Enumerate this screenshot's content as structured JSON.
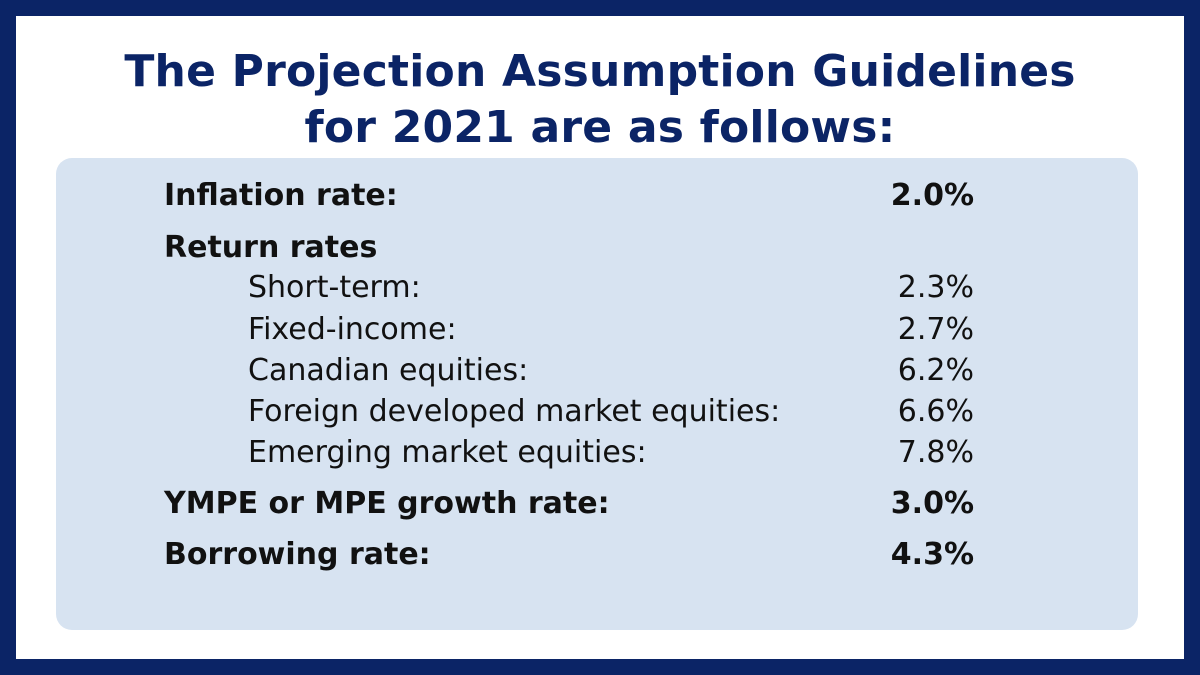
{
  "title": {
    "line1": "The Projection Assumption Guidelines",
    "line2": "for 2021 are as follows:"
  },
  "rows": {
    "inflation": {
      "label": "Inflation rate:",
      "value": "2.0%"
    },
    "return_rates": {
      "label": "Return rates"
    },
    "short_term": {
      "label": "Short-term:",
      "value": "2.3%"
    },
    "fixed_income": {
      "label": "Fixed-income:",
      "value": "2.7%"
    },
    "canadian_equities": {
      "label": "Canadian equities:",
      "value": "6.2%"
    },
    "foreign_developed": {
      "label": "Foreign developed market equities:",
      "value": "6.6%"
    },
    "emerging_market": {
      "label": "Emerging market equities:",
      "value": "7.8%"
    },
    "ympe_growth": {
      "label": "YMPE or MPE growth rate:",
      "value": "3.0%"
    },
    "borrowing": {
      "label": "Borrowing rate:",
      "value": "4.3%"
    }
  },
  "colors": {
    "border": "#0b2466",
    "title": "#0b2466",
    "panel": "#d7e3f1",
    "background": "#ffffff",
    "text": "#111111"
  }
}
